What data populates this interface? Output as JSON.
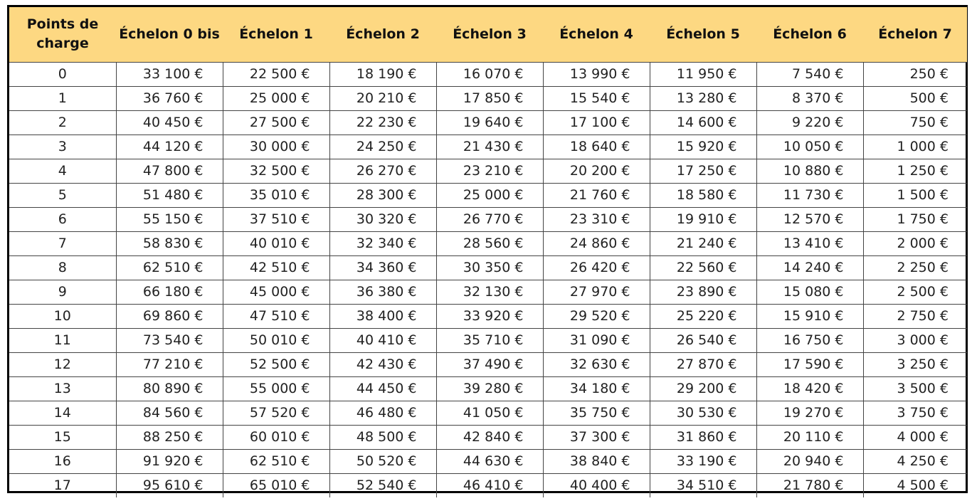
{
  "table": {
    "headers": [
      "Points de charge",
      "Échelon 0 bis",
      "Échelon 1",
      "Échelon 2",
      "Échelon 3",
      "Échelon 4",
      "Échelon 5",
      "Échelon 6",
      "Échelon 7"
    ],
    "rows": [
      [
        "0",
        "33 100 €",
        "22 500 €",
        "18 190 €",
        "16 070 €",
        "13 990 €",
        "11 950 €",
        "7 540 €",
        "250 €"
      ],
      [
        "1",
        "36 760 €",
        "25 000 €",
        "20 210 €",
        "17 850 €",
        "15 540 €",
        "13 280 €",
        "8 370 €",
        "500 €"
      ],
      [
        "2",
        "40 450 €",
        "27 500 €",
        "22 230 €",
        "19 640 €",
        "17 100 €",
        "14 600 €",
        "9 220 €",
        "750 €"
      ],
      [
        "3",
        "44 120 €",
        "30 000 €",
        "24 250 €",
        "21 430 €",
        "18 640 €",
        "15 920 €",
        "10 050 €",
        "1 000 €"
      ],
      [
        "4",
        "47 800 €",
        "32 500 €",
        "26 270 €",
        "23 210 €",
        "20 200 €",
        "17 250 €",
        "10 880 €",
        "1 250 €"
      ],
      [
        "5",
        "51 480 €",
        "35 010 €",
        "28 300 €",
        "25 000 €",
        "21 760 €",
        "18 580 €",
        "11 730 €",
        "1 500 €"
      ],
      [
        "6",
        "55 150 €",
        "37 510 €",
        "30 320 €",
        "26 770 €",
        "23 310 €",
        "19 910 €",
        "12 570 €",
        "1 750 €"
      ],
      [
        "7",
        "58 830 €",
        "40 010 €",
        "32 340 €",
        "28 560 €",
        "24 860 €",
        "21 240 €",
        "13 410 €",
        "2 000 €"
      ],
      [
        "8",
        "62 510 €",
        "42 510 €",
        "34 360 €",
        "30 350 €",
        "26 420 €",
        "22 560 €",
        "14 240 €",
        "2 250 €"
      ],
      [
        "9",
        "66 180 €",
        "45 000 €",
        "36 380 €",
        "32 130 €",
        "27 970 €",
        "23 890 €",
        "15 080 €",
        "2 500 €"
      ],
      [
        "10",
        "69 860 €",
        "47 510 €",
        "38 400 €",
        "33 920 €",
        "29 520 €",
        "25 220 €",
        "15 910 €",
        "2 750 €"
      ],
      [
        "11",
        "73 540 €",
        "50 010 €",
        "40 410 €",
        "35 710 €",
        "31 090 €",
        "26 540 €",
        "16 750 €",
        "3 000 €"
      ],
      [
        "12",
        "77 210 €",
        "52 500 €",
        "42 430 €",
        "37 490 €",
        "32 630 €",
        "27 870 €",
        "17 590 €",
        "3 250 €"
      ],
      [
        "13",
        "80 890 €",
        "55 000 €",
        "44 450 €",
        "39 280 €",
        "34 180 €",
        "29 200 €",
        "18 420 €",
        "3 500 €"
      ],
      [
        "14",
        "84 560 €",
        "57 520 €",
        "46 480 €",
        "41 050 €",
        "35 750 €",
        "30 530 €",
        "19 270 €",
        "3 750 €"
      ],
      [
        "15",
        "88 250 €",
        "60 010 €",
        "48 500 €",
        "42 840 €",
        "37 300 €",
        "31 860 €",
        "20 110 €",
        "4 000 €"
      ],
      [
        "16",
        "91 920 €",
        "62 510 €",
        "50 520 €",
        "44 630 €",
        "38 840 €",
        "33 190 €",
        "20 940 €",
        "4 250 €"
      ],
      [
        "17",
        "95 610 €",
        "65 010 €",
        "52 540 €",
        "46 410 €",
        "40 400 €",
        "34 510 €",
        "21 780 €",
        "4 500 €"
      ]
    ]
  },
  "colors": {
    "header_background": "#fdd882",
    "border": "#000000"
  }
}
